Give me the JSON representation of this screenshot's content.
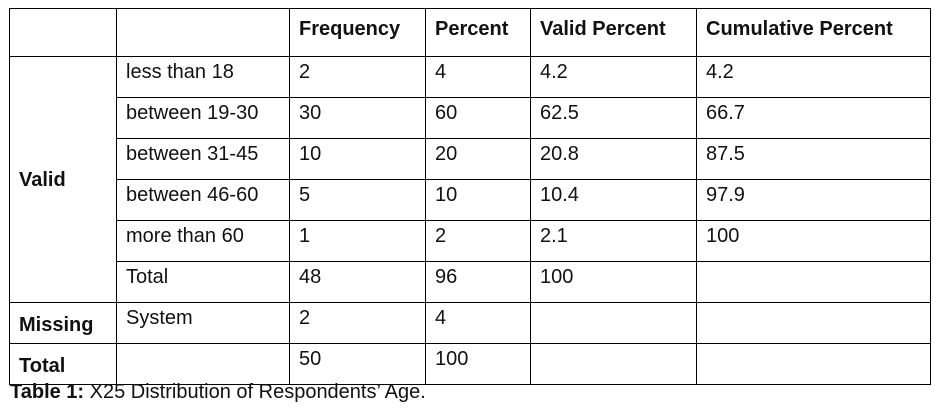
{
  "table": {
    "headers": [
      "",
      "",
      "Frequency",
      "Percent",
      "Valid Percent",
      "Cumulative Percent"
    ],
    "groups": [
      {
        "label": "Valid",
        "rows": [
          {
            "category": "less than 18",
            "frequency": "2",
            "percent": "4",
            "valid_percent": "4.2",
            "cumulative_percent": "4.2"
          },
          {
            "category": "between 19-30",
            "frequency": "30",
            "percent": "60",
            "valid_percent": "62.5",
            "cumulative_percent": "66.7"
          },
          {
            "category": "between 31-45",
            "frequency": "10",
            "percent": "20",
            "valid_percent": "20.8",
            "cumulative_percent": "87.5"
          },
          {
            "category": "between 46-60",
            "frequency": "5",
            "percent": "10",
            "valid_percent": "10.4",
            "cumulative_percent": "97.9"
          },
          {
            "category": "more than 60",
            "frequency": "1",
            "percent": "2",
            "valid_percent": "2.1",
            "cumulative_percent": "100"
          },
          {
            "category": "Total",
            "frequency": "48",
            "percent": "96",
            "valid_percent": "100",
            "cumulative_percent": ""
          }
        ]
      },
      {
        "label": "Missing",
        "rows": [
          {
            "category": "System",
            "frequency": "2",
            "percent": "4",
            "valid_percent": "",
            "cumulative_percent": ""
          }
        ]
      },
      {
        "label": "Total",
        "rows": [
          {
            "category": "",
            "frequency": "50",
            "percent": "100",
            "valid_percent": "",
            "cumulative_percent": ""
          }
        ]
      }
    ]
  },
  "caption": {
    "label": "Table 1:",
    "text": " X25 Distribution of Respondents’ Age."
  }
}
